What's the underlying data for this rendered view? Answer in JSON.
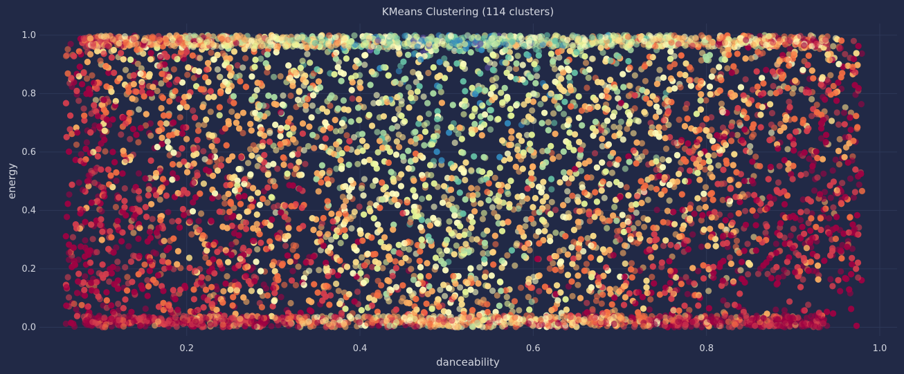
{
  "chart_data": {
    "type": "scatter",
    "title": "KMeans Clustering (114 clusters)",
    "xlabel": "danceability",
    "ylabel": "energy",
    "xlim": [
      0.03,
      1.02
    ],
    "ylim": [
      -0.03,
      1.04
    ],
    "xticks": [
      0.2,
      0.4,
      0.6,
      0.8,
      1.0
    ],
    "xtick_labels": [
      "0.2",
      "0.4",
      "0.6",
      "0.8",
      "1.0"
    ],
    "yticks": [
      0.0,
      0.2,
      0.4,
      0.6,
      0.8,
      1.0
    ],
    "ytick_labels": [
      "0.0",
      "0.2",
      "0.4",
      "0.6",
      "0.8",
      "1.0"
    ],
    "grid": true,
    "colormap": [
      "#9e0142",
      "#d53e4f",
      "#f46d43",
      "#fdae61",
      "#fee08b",
      "#ffffbf",
      "#e6f598",
      "#abdda4",
      "#66c2a5",
      "#3288bd",
      "#5e4fa2"
    ],
    "point_alpha": 0.6,
    "point_count_estimate": 9000,
    "x_range_of_points": [
      0.06,
      0.98
    ],
    "y_range_of_points": [
      0.0,
      1.0
    ],
    "points": [
      [
        0.066,
        0.97
      ],
      [
        0.975,
        0.17
      ],
      [
        0.93,
        0.05
      ],
      [
        0.9,
        0.03
      ],
      [
        0.96,
        0.65
      ],
      [
        0.08,
        0.4
      ],
      [
        0.12,
        0.2
      ],
      [
        0.74,
        0.01
      ],
      [
        0.88,
        0.06
      ],
      [
        0.97,
        0.98
      ],
      [
        0.07,
        0.08
      ],
      [
        0.08,
        0.47
      ],
      [
        0.1,
        0.35
      ],
      [
        0.5,
        0.9
      ],
      [
        0.55,
        0.95
      ],
      [
        0.6,
        0.8
      ],
      [
        0.45,
        0.7
      ],
      [
        0.3,
        0.5
      ],
      [
        0.7,
        0.3
      ],
      [
        0.85,
        0.6
      ]
    ]
  }
}
